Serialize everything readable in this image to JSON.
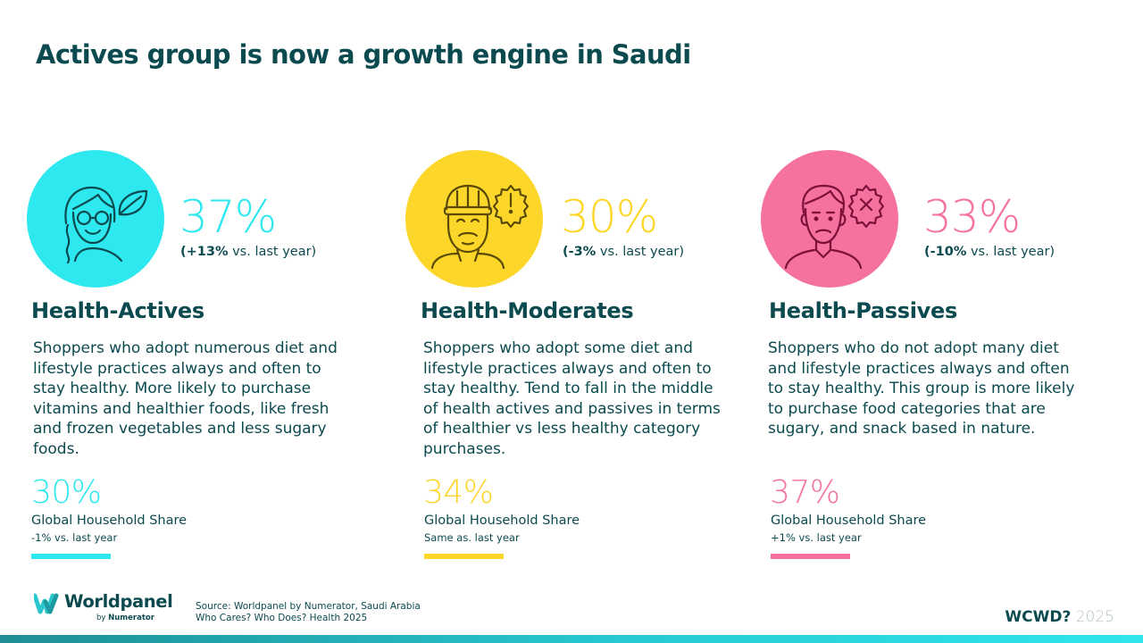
{
  "title": "Actives group is now a growth engine in Saudi",
  "colors": {
    "actives": "#2ee8ef",
    "moderates": "#fdd62a",
    "passives": "#f4729d",
    "text": "#0b4a4f"
  },
  "segments": [
    {
      "icon": "woman-with-glasses-leaf-icon",
      "pct": "37%",
      "delta_bold": "(+13%",
      "delta_rest": " vs. last year)",
      "name": "Health-Actives",
      "desc": "Shoppers who adopt numerous diet and lifestyle practices always and often to stay healthy. More likely to purchase vitamins and healthier foods, like fresh and frozen vegetables and less sugary foods.",
      "share_pct": "30%",
      "share_label": "Global Household Share",
      "share_sub": "-1% vs. last year"
    },
    {
      "icon": "bearded-man-alert-icon",
      "pct": "30%",
      "delta_bold": "(-3%",
      "delta_rest": " vs. last year)",
      "name": "Health-Moderates",
      "desc": "Shoppers who adopt some diet and lifestyle practices always and often to stay healthy. Tend to fall in the middle of health actives and passives in terms of healthier vs less healthy category purchases.",
      "share_pct": "34%",
      "share_label": "Global Household Share",
      "share_sub": "Same as. last year"
    },
    {
      "icon": "man-cross-badge-icon",
      "pct": "33%",
      "delta_bold": "(-10%",
      "delta_rest": " vs. last year)",
      "name": "Health-Passives",
      "desc": "Shoppers who do not adopt many diet and lifestyle practices always and often to stay healthy. This group is more likely to purchase food categories that are sugary, and snack based in nature.",
      "share_pct": "37%",
      "share_label": "Global Household Share",
      "share_sub": "+1% vs. last year"
    }
  ],
  "footer": {
    "logo_word": "Worldpanel",
    "logo_by": "by",
    "logo_by_brand": "Numerator",
    "source_line1": "Source: Worldpanel by Numerator, Saudi Arabia",
    "source_line2": "Who Cares? Who Does? Health 2025",
    "wcwd": "WCWD?",
    "year": "2025"
  }
}
